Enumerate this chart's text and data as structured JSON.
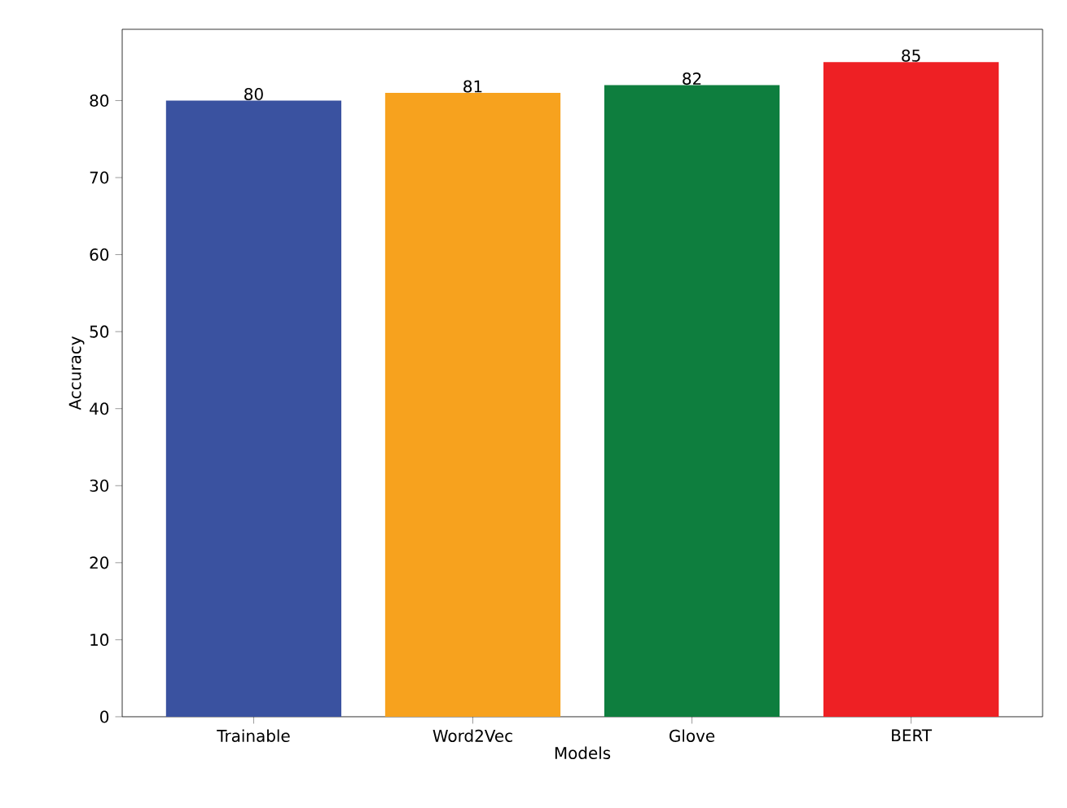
{
  "chart_data": {
    "type": "bar",
    "xlabel": "Models",
    "ylabel": "Accuracy",
    "categories": [
      "Trainable",
      "Word2Vec",
      "Glove",
      "BERT"
    ],
    "values": [
      80,
      81,
      82,
      85
    ],
    "colors": [
      "#3a52a0",
      "#f7a21e",
      "#0e7e3e",
      "#ee2024"
    ],
    "ylim": [
      0,
      89.25
    ],
    "yticks": [
      0,
      10,
      20,
      30,
      40,
      50,
      60,
      70,
      80
    ],
    "data_labels": true
  }
}
